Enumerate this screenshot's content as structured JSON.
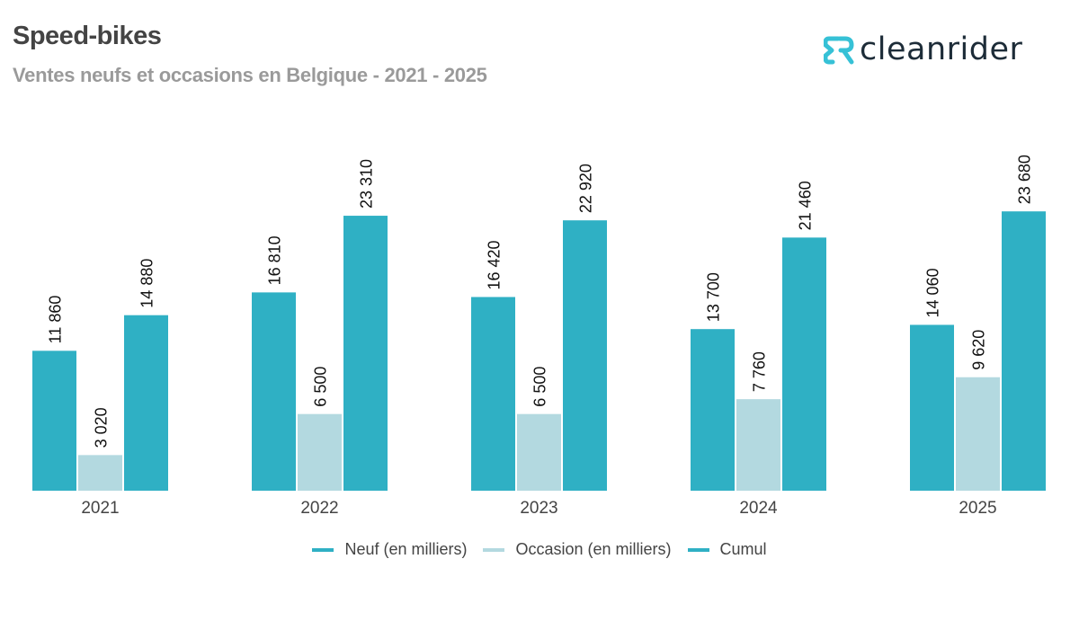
{
  "header": {
    "title": "Speed-bikes",
    "subtitle": "Ventes neufs et occasions en Belgique - 2021 - 2025"
  },
  "logo": {
    "icon": "cleanrider-r-icon",
    "text": "cleanrider",
    "icon_color": "#36c1d6",
    "text_color": "#1d2c38"
  },
  "chart_data": {
    "type": "bar",
    "title": "Speed-bikes",
    "subtitle": "Ventes neufs et occasions en Belgique - 2021 - 2025",
    "xlabel": "",
    "ylabel": "",
    "categories": [
      "2021",
      "2022",
      "2023",
      "2024",
      "2025"
    ],
    "series": [
      {
        "name": "Neuf (en milliers)",
        "color": "#2fb0c4",
        "values": [
          11860,
          16810,
          16420,
          13700,
          14060
        ],
        "labels": [
          "11 860",
          "16 810",
          "16 420",
          "13 700",
          "14 060"
        ]
      },
      {
        "name": "Occasion (en milliers)",
        "color": "#b3d9e0",
        "values": [
          3020,
          6500,
          6500,
          7760,
          9620
        ],
        "labels": [
          "3 020",
          "6 500",
          "6 500",
          "7 760",
          "9 620"
        ]
      },
      {
        "name": "Cumul",
        "color": "#2fb0c4",
        "values": [
          14880,
          23310,
          22920,
          21460,
          23680
        ],
        "labels": [
          "14 880",
          "23 310",
          "22 920",
          "21 460",
          "23 680"
        ]
      }
    ],
    "ylim": [
      0,
      24000
    ],
    "grid": false,
    "y_axis_visible": false,
    "data_labels": "rotated-vertical",
    "legend_position": "bottom"
  }
}
